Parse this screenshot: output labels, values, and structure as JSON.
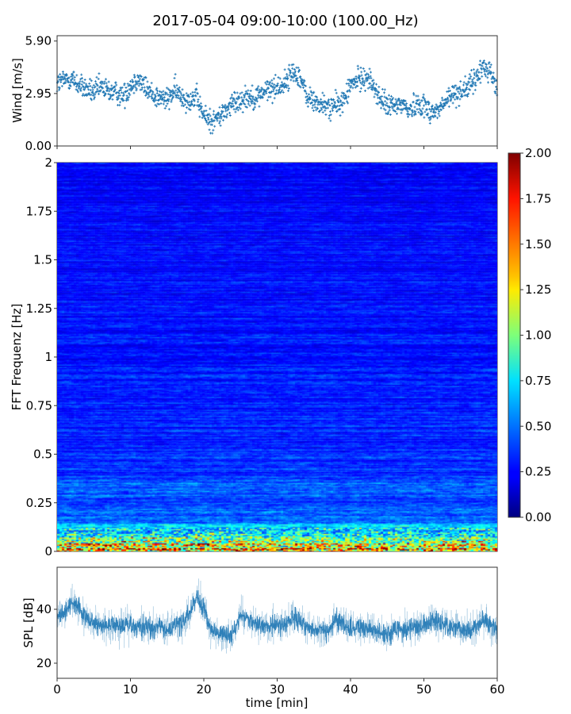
{
  "title": "2017-05-04 09:00-10:00 (100.00_Hz)",
  "chart_data": [
    {
      "type": "scatter",
      "name_panel": "wind",
      "ylabel": "Wind [m/s]",
      "xlim": [
        0,
        60
      ],
      "ylim": [
        0,
        6.2
      ],
      "yticks": [
        "0.00",
        "2.95",
        "5.90"
      ],
      "ytick_values": [
        0,
        2.95,
        5.9
      ],
      "marker": "+",
      "color": "#1f77b4",
      "x_minutes": [
        0,
        1,
        2,
        3,
        4,
        5,
        6,
        7,
        8,
        9,
        10,
        11,
        12,
        13,
        14,
        15,
        16,
        17,
        18,
        19,
        20,
        21,
        22,
        23,
        24,
        25,
        26,
        27,
        28,
        29,
        30,
        31,
        32,
        33,
        34,
        35,
        36,
        37,
        38,
        39,
        40,
        41,
        42,
        43,
        44,
        45,
        46,
        47,
        48,
        49,
        50,
        51,
        52,
        53,
        54,
        55,
        56,
        57,
        58,
        59,
        60
      ],
      "values": [
        3.5,
        3.7,
        3.8,
        3.4,
        3.2,
        3.0,
        3.3,
        3.1,
        3.0,
        2.8,
        3.4,
        3.8,
        3.3,
        2.9,
        2.7,
        2.6,
        3.1,
        2.8,
        2.6,
        2.7,
        1.7,
        1.4,
        1.6,
        2.0,
        2.4,
        2.6,
        2.8,
        2.7,
        3.0,
        3.2,
        3.3,
        3.5,
        4.1,
        4.0,
        2.8,
        2.5,
        2.3,
        2.2,
        2.3,
        2.5,
        3.4,
        3.7,
        3.9,
        3.5,
        2.6,
        2.3,
        2.2,
        2.4,
        2.0,
        2.4,
        2.3,
        1.9,
        2.0,
        2.5,
        2.9,
        3.1,
        3.3,
        3.7,
        4.4,
        4.3,
        3.1
      ]
    },
    {
      "type": "heatmap",
      "ylabel": "FFT Frequenz [Hz]",
      "xlim": [
        0,
        60
      ],
      "ylim": [
        0,
        2
      ],
      "yticks": [
        "0",
        "0.25",
        "0.5",
        "0.75",
        "1",
        "1.25",
        "1.5",
        "1.75",
        "2"
      ],
      "ytick_values": [
        0,
        0.25,
        0.5,
        0.75,
        1,
        1.25,
        1.5,
        1.75,
        2
      ],
      "colormap": "jet",
      "colorbar": {
        "range": [
          0,
          2
        ],
        "ticks": [
          "0.00",
          "0.25",
          "0.50",
          "0.75",
          "1.00",
          "1.25",
          "1.50",
          "1.75",
          "2.00"
        ],
        "tick_values": [
          0,
          0.25,
          0.5,
          0.75,
          1,
          1.25,
          1.5,
          1.75,
          2
        ]
      },
      "typical_level_by_frequency": {
        "frequency_hz": [
          0,
          0.05,
          0.1,
          0.25,
          0.5,
          1,
          2
        ],
        "level": [
          1.4,
          0.9,
          0.55,
          0.38,
          0.3,
          0.26,
          0.22
        ]
      }
    },
    {
      "type": "line",
      "ylabel": "SPL [dB]",
      "xlabel": "time [min]",
      "xlim": [
        0,
        60
      ],
      "ylim": [
        14.4,
        55.6
      ],
      "xticks": [
        "0",
        "10",
        "20",
        "30",
        "40",
        "50",
        "60"
      ],
      "xtick_values": [
        0,
        10,
        20,
        30,
        40,
        50,
        60
      ],
      "yticks": [
        "20",
        "40"
      ],
      "ytick_values": [
        20,
        40
      ],
      "color": "#1f77b4",
      "x_minutes": [
        0,
        1,
        2,
        3,
        4,
        5,
        6,
        7,
        8,
        9,
        10,
        11,
        12,
        13,
        14,
        15,
        16,
        17,
        18,
        19,
        20,
        21,
        22,
        23,
        24,
        25,
        26,
        27,
        28,
        29,
        30,
        31,
        32,
        33,
        34,
        35,
        36,
        37,
        38,
        39,
        40,
        41,
        42,
        43,
        44,
        45,
        46,
        47,
        48,
        49,
        50,
        51,
        52,
        53,
        54,
        55,
        56,
        57,
        58,
        59,
        60
      ],
      "values": [
        36,
        39,
        43,
        40,
        37,
        35,
        34,
        34,
        34,
        34,
        34,
        33,
        34,
        33,
        34,
        32,
        34,
        35,
        38,
        45,
        40,
        32,
        31,
        31,
        30,
        38,
        36,
        35,
        34,
        34,
        34,
        34,
        37,
        36,
        33,
        33,
        33,
        32,
        37,
        34,
        33,
        33,
        33,
        32,
        32,
        30,
        32,
        33,
        33,
        33,
        34,
        36,
        35,
        34,
        33,
        33,
        32,
        33,
        37,
        34,
        32
      ]
    }
  ]
}
